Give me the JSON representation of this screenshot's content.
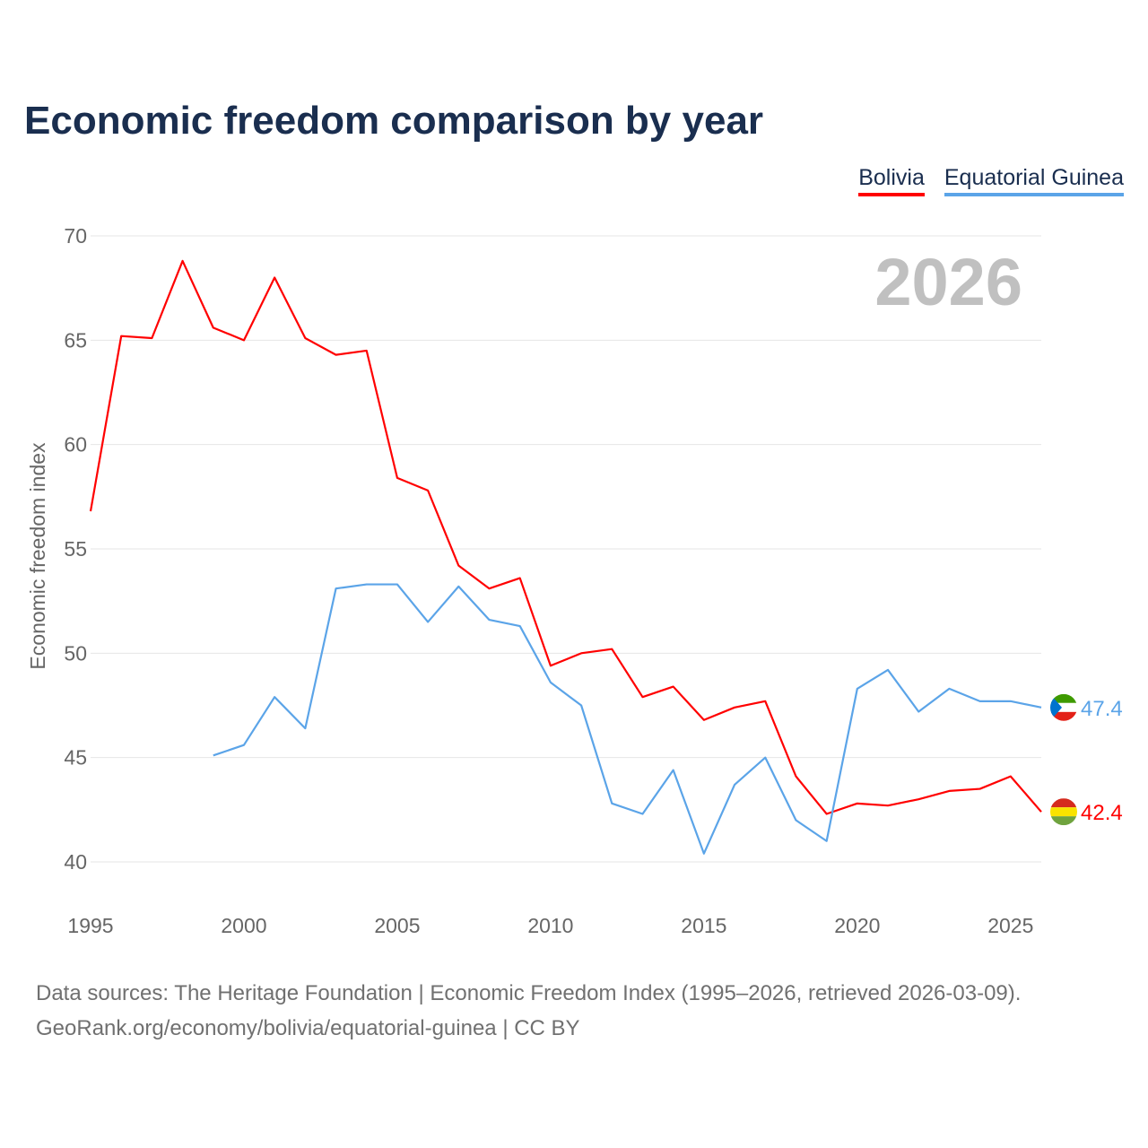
{
  "title": "Economic freedom comparison by year",
  "legend": [
    {
      "name": "Bolivia",
      "color": "#ff0000"
    },
    {
      "name": "Equatorial Guinea",
      "color": "#5ba4e8"
    }
  ],
  "year_watermark": "2026",
  "footer": {
    "line1": "Data sources: The Heritage Foundation | Economic Freedom Index (1995–2026, retrieved 2026-03-09).",
    "line2": "GeoRank.org/economy/bolivia/equatorial-guinea | CC BY"
  },
  "chart_data": {
    "type": "line",
    "title": "Economic freedom comparison by year",
    "xlabel": "",
    "ylabel": "Economic freedom index",
    "xlim": [
      1995,
      2026
    ],
    "ylim": [
      40,
      70
    ],
    "xticks": [
      1995,
      2000,
      2005,
      2010,
      2015,
      2020,
      2025
    ],
    "yticks": [
      40,
      45,
      50,
      55,
      60,
      65,
      70
    ],
    "grid": true,
    "legend_position": "top-right",
    "series": [
      {
        "name": "Bolivia",
        "color": "#ff0000",
        "end_label": "42.4",
        "x": [
          1995,
          1996,
          1997,
          1998,
          1999,
          2000,
          2001,
          2002,
          2003,
          2004,
          2005,
          2006,
          2007,
          2008,
          2009,
          2010,
          2011,
          2012,
          2013,
          2014,
          2015,
          2016,
          2017,
          2018,
          2019,
          2020,
          2021,
          2022,
          2023,
          2024,
          2025,
          2026
        ],
        "values": [
          56.8,
          65.2,
          65.1,
          68.8,
          65.6,
          65.0,
          68.0,
          65.1,
          64.3,
          64.5,
          58.4,
          57.8,
          54.2,
          53.1,
          53.6,
          49.4,
          50.0,
          50.2,
          47.9,
          48.4,
          46.8,
          47.4,
          47.7,
          44.1,
          42.3,
          42.8,
          42.7,
          43.0,
          43.4,
          43.5,
          44.1,
          42.4
        ]
      },
      {
        "name": "Equatorial Guinea",
        "color": "#5ba4e8",
        "end_label": "47.4",
        "x": [
          1999,
          2000,
          2001,
          2002,
          2003,
          2004,
          2005,
          2006,
          2007,
          2008,
          2009,
          2010,
          2011,
          2012,
          2013,
          2014,
          2015,
          2016,
          2017,
          2018,
          2019,
          2020,
          2021,
          2022,
          2023,
          2024,
          2025,
          2026
        ],
        "values": [
          45.1,
          45.6,
          47.9,
          46.4,
          53.1,
          53.3,
          53.3,
          51.5,
          53.2,
          51.6,
          51.3,
          48.6,
          47.5,
          42.8,
          42.3,
          44.4,
          40.4,
          43.7,
          45.0,
          42.0,
          41.0,
          48.3,
          49.2,
          47.2,
          48.3,
          47.7,
          47.7,
          47.4
        ]
      }
    ]
  }
}
